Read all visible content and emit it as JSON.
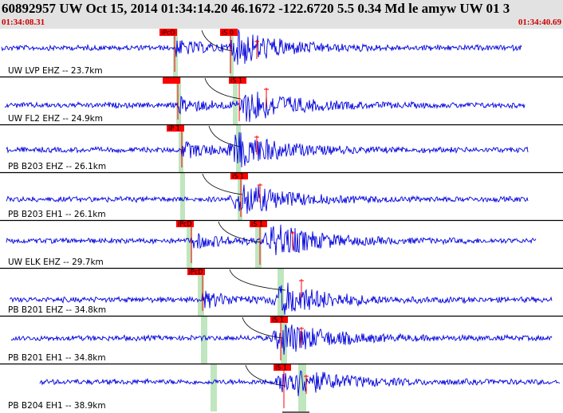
{
  "header": {
    "title": "60892957 UW Oct 15, 2014 01:34:14.20   46.1672 -122.6720   5.5 0.34 Md le amyw UW 01   3",
    "time_start": "01:34:08.31",
    "time_end": "01:34:40.69"
  },
  "colors": {
    "header_bg": "#e2e2e2",
    "trace": "#0000dd",
    "pick": "#ff0000",
    "window": "#bfe6bf",
    "time_text": "#cc0000",
    "theory_curve": "#000000"
  },
  "panels": [
    {
      "label": "UW LVP EHZ -- 23.7km",
      "p_label": "iPcD",
      "s_label": "iS 0"
    },
    {
      "label": "UW FL2 EHZ -- 24.9km",
      "p_label": "",
      "s_label": "iS 1"
    },
    {
      "label": "PB B203 EHZ -- 26.1km",
      "p_label": "iP 1",
      "s_label": ""
    },
    {
      "label": "PB B203 EH1 -- 26.1km",
      "p_label": "",
      "s_label": "iS 1"
    },
    {
      "label": "UW ELK EHZ -- 29.7km",
      "p_label": "iPcD",
      "s_label": "iS 1"
    },
    {
      "label": "PB B201 EHZ -- 34.8km",
      "p_label": "iPcD",
      "s_label": ""
    },
    {
      "label": "PB B201 EH1 -- 34.8km",
      "p_label": "",
      "s_label": "iS 1"
    },
    {
      "label": "PB B204 EH1 -- 38.9km",
      "p_label": "",
      "s_label": "iS 1"
    }
  ]
}
